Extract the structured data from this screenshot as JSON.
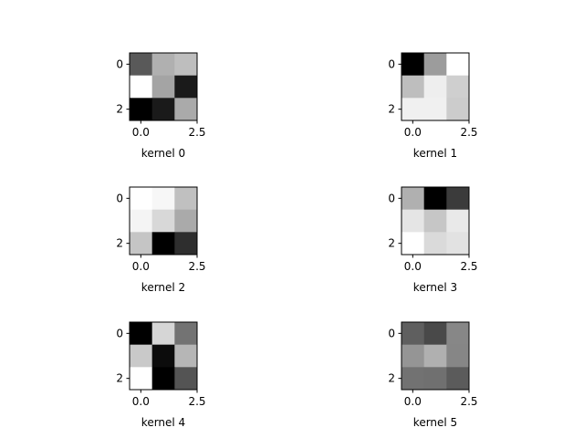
{
  "chart_data": [
    {
      "type": "heatmap",
      "colormap": "gray",
      "xlabel": "kernel 0",
      "x_ticks": [
        "0.0",
        "2.5"
      ],
      "y_ticks": [
        "0",
        "2"
      ],
      "values": [
        [
          89,
          176,
          190
        ],
        [
          255,
          164,
          26
        ],
        [
          0,
          26,
          170
        ]
      ]
    },
    {
      "type": "heatmap",
      "colormap": "gray",
      "xlabel": "kernel 1",
      "x_ticks": [
        "0.0",
        "2.5"
      ],
      "y_ticks": [
        "0",
        "2"
      ],
      "values": [
        [
          0,
          156,
          255
        ],
        [
          190,
          238,
          207
        ],
        [
          240,
          240,
          204
        ]
      ]
    },
    {
      "type": "heatmap",
      "colormap": "gray",
      "xlabel": "kernel 2",
      "x_ticks": [
        "0.0",
        "2.5"
      ],
      "y_ticks": [
        "0",
        "2"
      ],
      "values": [
        [
          255,
          247,
          192
        ],
        [
          244,
          216,
          170
        ],
        [
          197,
          0,
          46
        ]
      ]
    },
    {
      "type": "heatmap",
      "colormap": "gray",
      "xlabel": "kernel 3",
      "x_ticks": [
        "0.0",
        "2.5"
      ],
      "y_ticks": [
        "0",
        "2"
      ],
      "values": [
        [
          176,
          0,
          59
        ],
        [
          229,
          198,
          233
        ],
        [
          255,
          218,
          226
        ]
      ]
    },
    {
      "type": "heatmap",
      "colormap": "gray",
      "xlabel": "kernel 4",
      "x_ticks": [
        "0.0",
        "2.5"
      ],
      "y_ticks": [
        "0",
        "2"
      ],
      "values": [
        [
          0,
          214,
          115
        ],
        [
          201,
          12,
          182
        ],
        [
          255,
          0,
          84
        ]
      ]
    },
    {
      "type": "heatmap",
      "colormap": "gray",
      "xlabel": "kernel 5",
      "x_ticks": [
        "0.0",
        "2.5"
      ],
      "y_ticks": [
        "0",
        "2"
      ],
      "values": [
        [
          95,
          73,
          135
        ],
        [
          149,
          176,
          134
        ],
        [
          114,
          112,
          91
        ]
      ]
    }
  ]
}
